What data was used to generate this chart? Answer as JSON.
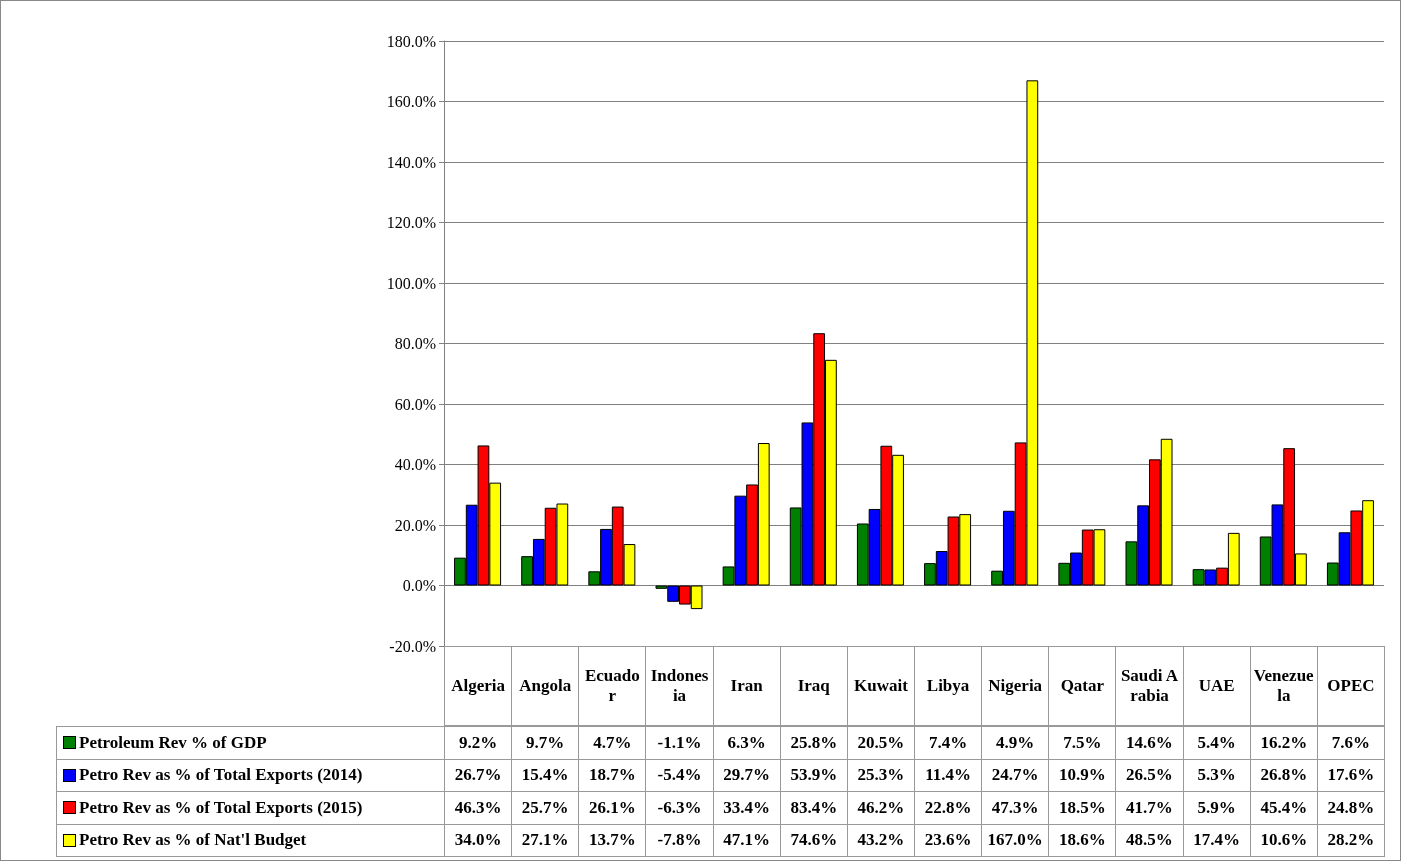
{
  "chart_data": {
    "type": "bar",
    "categories": [
      "Algeria",
      "Angola",
      "Ecuador",
      "Indonesia",
      "Iran",
      "Iraq",
      "Kuwait",
      "Libya",
      "Nigeria",
      "Qatar",
      "Saudi Arabia",
      "UAE",
      "Venezuela",
      "OPEC"
    ],
    "series": [
      {
        "name": "Petroleum Rev % of GDP",
        "color": "#008000",
        "values": [
          9.2,
          9.7,
          4.7,
          -1.1,
          6.3,
          25.8,
          20.5,
          7.4,
          4.9,
          7.5,
          14.6,
          5.4,
          16.2,
          7.6
        ],
        "value_labels": [
          "9.2%",
          "9.7%",
          "4.7%",
          "-1.1%",
          "6.3%",
          "25.8%",
          "20.5%",
          "7.4%",
          "4.9%",
          "7.5%",
          "14.6%",
          "5.4%",
          "16.2%",
          "7.6%"
        ]
      },
      {
        "name": "Petro Rev as % of Total Exports (2014)",
        "color": "#0000ff",
        "values": [
          26.7,
          15.4,
          18.7,
          -5.4,
          29.7,
          53.9,
          25.3,
          11.4,
          24.7,
          10.9,
          26.5,
          5.3,
          26.8,
          17.6
        ],
        "value_labels": [
          "26.7%",
          "15.4%",
          "18.7%",
          "-5.4%",
          "29.7%",
          "53.9%",
          "25.3%",
          "11.4%",
          "24.7%",
          "10.9%",
          "26.5%",
          "5.3%",
          "26.8%",
          "17.6%"
        ]
      },
      {
        "name": "Petro Rev as % of Total Exports (2015)",
        "color": "#ff0000",
        "values": [
          46.3,
          25.7,
          26.1,
          -6.3,
          33.4,
          83.4,
          46.2,
          22.8,
          47.3,
          18.5,
          41.7,
          5.9,
          45.4,
          24.8
        ],
        "value_labels": [
          "46.3%",
          "25.7%",
          "26.1%",
          "-6.3%",
          "33.4%",
          "83.4%",
          "46.2%",
          "22.8%",
          "47.3%",
          "18.5%",
          "41.7%",
          "5.9%",
          "45.4%",
          "24.8%"
        ]
      },
      {
        "name": "Petro Rev as % of Nat'l Budget",
        "color": "#ffff00",
        "values": [
          34.0,
          27.1,
          13.7,
          -7.8,
          47.1,
          74.6,
          43.2,
          23.6,
          167.0,
          18.6,
          48.5,
          17.4,
          10.6,
          28.2
        ],
        "value_labels": [
          "34.0%",
          "27.1%",
          "13.7%",
          "-7.8%",
          "47.1%",
          "74.6%",
          "43.2%",
          "23.6%",
          "167.0%",
          "18.6%",
          "48.5%",
          "17.4%",
          "10.6%",
          "28.2%"
        ]
      }
    ],
    "ylim": [
      -20,
      180
    ],
    "yticks": [
      {
        "value": -20,
        "label": "-20.0%"
      },
      {
        "value": 0,
        "label": "0.0%"
      },
      {
        "value": 20,
        "label": "20.0%"
      },
      {
        "value": 40,
        "label": "40.0%"
      },
      {
        "value": 60,
        "label": "60.0%"
      },
      {
        "value": 80,
        "label": "80.0%"
      },
      {
        "value": 100,
        "label": "100.0%"
      },
      {
        "value": 120,
        "label": "120.0%"
      },
      {
        "value": 140,
        "label": "140.0%"
      },
      {
        "value": 160,
        "label": "160.0%"
      },
      {
        "value": 180,
        "label": "180.0%"
      }
    ],
    "grid": "y",
    "legend": "bottom"
  }
}
